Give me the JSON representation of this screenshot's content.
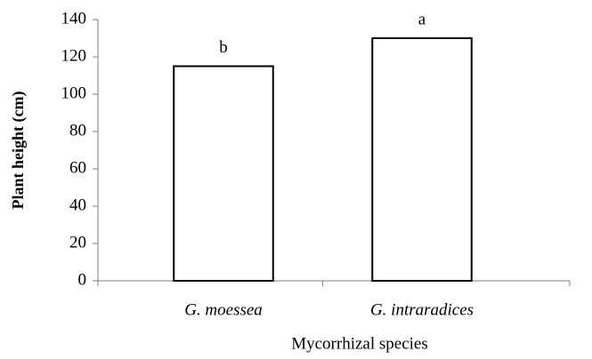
{
  "chart_data": {
    "type": "bar",
    "x_label": "Mycorrhizal species",
    "y_label": "Plant height (cm)",
    "categories": [
      "G. moessea",
      "G. intraradices"
    ],
    "values": [
      115,
      130
    ],
    "annotations": [
      "b",
      "a"
    ],
    "color": "#ffffff",
    "ylim": [
      0,
      140
    ],
    "yticks": [
      0,
      20,
      40,
      60,
      80,
      100,
      120,
      140
    ],
    "grid": false
  }
}
